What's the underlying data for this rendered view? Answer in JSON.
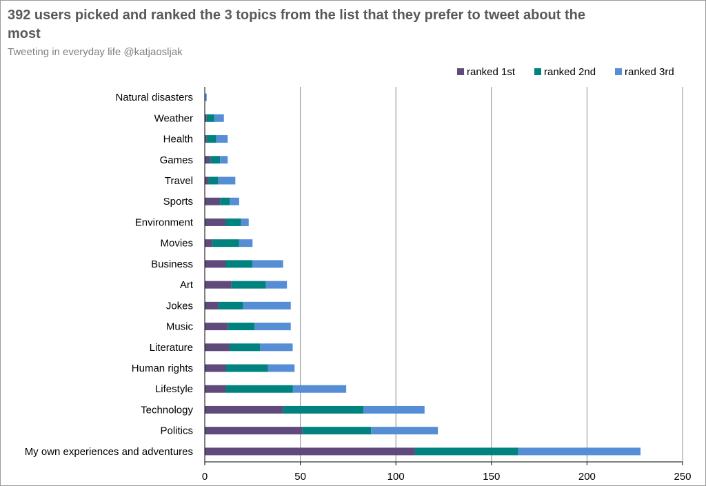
{
  "title": "392 users picked and ranked the 3 topics from the list that they prefer to tweet about the most",
  "subtitle": "Tweeting in everyday life @katjaosljak",
  "colors": {
    "ranked_1st": "#604a7b",
    "ranked_2nd": "#00827f",
    "ranked_3rd": "#558ed5",
    "grid": "#8c8c8c"
  },
  "chart_data": {
    "type": "bar",
    "orientation": "horizontal",
    "stacked": true,
    "categories": [
      "Natural disasters",
      "Weather",
      "Health",
      "Games",
      "Travel",
      "Sports",
      "Environment",
      "Movies",
      "Business",
      "Art",
      "Jokes",
      "Music",
      "Literature",
      "Human rights",
      "Lifestyle",
      "Technology",
      "Politics",
      "My own experiences and adventures"
    ],
    "series": [
      {
        "name": "ranked 1st",
        "values": [
          0,
          1,
          1,
          3,
          2,
          8,
          11,
          4,
          11,
          14,
          7,
          12,
          13,
          11,
          11,
          41,
          51,
          110
        ]
      },
      {
        "name": "ranked 2nd",
        "values": [
          0,
          4,
          5,
          5,
          5,
          5,
          8,
          14,
          14,
          18,
          13,
          14,
          16,
          22,
          35,
          42,
          36,
          54
        ]
      },
      {
        "name": "ranked 3rd",
        "values": [
          1,
          5,
          6,
          4,
          9,
          5,
          4,
          7,
          16,
          11,
          25,
          19,
          17,
          14,
          28,
          32,
          35,
          64
        ]
      }
    ],
    "xlim": [
      0,
      250
    ],
    "xticks": [
      "0",
      "50",
      "100",
      "150",
      "200",
      "250"
    ],
    "grid": true,
    "legend": "top-right"
  }
}
